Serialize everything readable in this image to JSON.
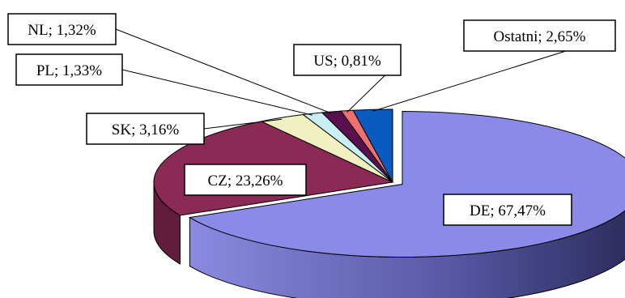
{
  "chart_data": {
    "type": "pie",
    "title": "",
    "style": "3d-exploded-largest-slice",
    "separator": "; ",
    "slices": [
      {
        "label": "DE",
        "value": 67.47,
        "value_text": "67,47%",
        "color": "#8a8ae8"
      },
      {
        "label": "CZ",
        "value": 23.26,
        "value_text": "23,26%",
        "color": "#8a2a55"
      },
      {
        "label": "SK",
        "value": 3.16,
        "value_text": "3,16%",
        "color": "#f0f0c0"
      },
      {
        "label": "PL",
        "value": 1.33,
        "value_text": "1,33%",
        "color": "#c8f0f4"
      },
      {
        "label": "NL",
        "value": 1.32,
        "value_text": "1,32%",
        "color": "#5a1050"
      },
      {
        "label": "US",
        "value": 0.81,
        "value_text": "0,81%",
        "color": "#f07070"
      },
      {
        "label": "Ostatni",
        "value": 2.65,
        "value_text": "2,65%",
        "color": "#0a5ac0"
      }
    ]
  }
}
